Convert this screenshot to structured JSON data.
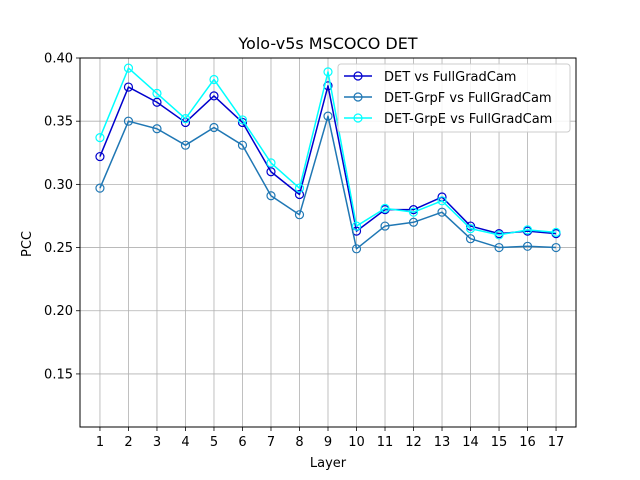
{
  "chart_data": {
    "type": "line",
    "title": "Yolo-v5s MSCOCO DET",
    "xlabel": "Layer",
    "ylabel": "PCC",
    "x": [
      1,
      2,
      3,
      4,
      5,
      6,
      7,
      8,
      9,
      10,
      11,
      12,
      13,
      14,
      15,
      16,
      17
    ],
    "xlim": [
      0.3,
      17.7
    ],
    "ylim": [
      0.108,
      0.4
    ],
    "yticks": [
      "0.15",
      "0.20",
      "0.25",
      "0.30",
      "0.35",
      "0.40"
    ],
    "grid": true,
    "legend_position": "top-right",
    "series": [
      {
        "name": "DET vs FullGradCam",
        "color": "#0000cd",
        "values": [
          0.322,
          0.377,
          0.365,
          0.349,
          0.37,
          0.349,
          0.31,
          0.292,
          0.378,
          0.263,
          0.28,
          0.28,
          0.29,
          0.267,
          0.261,
          0.263,
          0.261
        ]
      },
      {
        "name": "DET-GrpF vs FullGradCam",
        "color": "#1f77b4",
        "values": [
          0.297,
          0.35,
          0.344,
          0.331,
          0.345,
          0.331,
          0.291,
          0.276,
          0.354,
          0.249,
          0.267,
          0.27,
          0.278,
          0.257,
          0.25,
          0.251,
          0.25
        ]
      },
      {
        "name": "DET-GrpE vs FullGradCam",
        "color": "#00ffff",
        "values": [
          0.337,
          0.392,
          0.372,
          0.352,
          0.383,
          0.351,
          0.317,
          0.297,
          0.389,
          0.267,
          0.281,
          0.278,
          0.287,
          0.265,
          0.26,
          0.264,
          0.262
        ]
      }
    ]
  }
}
